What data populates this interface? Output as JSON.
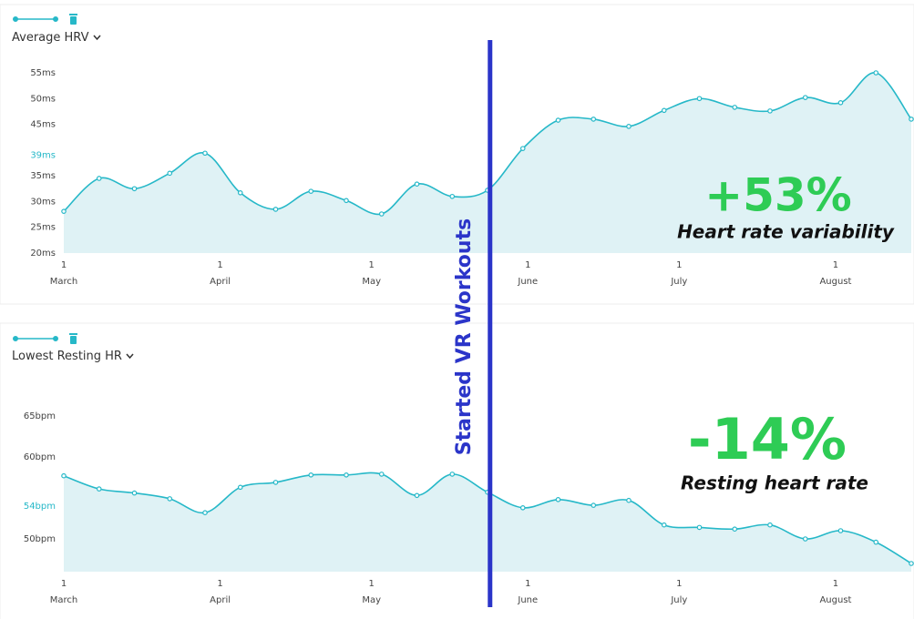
{
  "chart_data": [
    {
      "type": "area",
      "label": "Average HRV",
      "x": [
        0,
        7,
        14,
        21,
        28,
        35,
        42,
        49,
        56,
        63,
        70,
        77,
        84,
        91,
        98,
        105,
        112,
        119,
        126,
        133,
        140,
        147,
        154,
        161,
        168
      ],
      "values": [
        28.1,
        34.5,
        32.5,
        35.5,
        39.4,
        31.7,
        28.5,
        32,
        30.2,
        27.6,
        33.4,
        31,
        32.2,
        40.3,
        45.8,
        46,
        44.6,
        47.7,
        50,
        48.3,
        47.6,
        50.2,
        49.2,
        55,
        46
      ],
      "color": "#26b8c8",
      "fill_color": "#dff2f5",
      "xlim": [
        0,
        168
      ],
      "xticks": [
        {
          "value": 0,
          "label": "1\nMarch"
        },
        {
          "value": 31,
          "label": "1\nApril"
        },
        {
          "value": 61,
          "label": "1\nMay"
        },
        {
          "value": 92,
          "label": "1\nJune"
        },
        {
          "value": 122,
          "label": "1\nJuly"
        },
        {
          "value": 153,
          "label": "1\nAugust"
        }
      ],
      "ylim": [
        20,
        55
      ],
      "yticks": [
        {
          "value": 20,
          "label": "20ms"
        },
        {
          "value": 25,
          "label": "25ms"
        },
        {
          "value": 30,
          "label": "30ms"
        },
        {
          "value": 35,
          "label": "35ms"
        },
        {
          "value": 45,
          "label": "45ms"
        },
        {
          "value": 50,
          "label": "50ms"
        },
        {
          "value": 55,
          "label": "55ms"
        }
      ],
      "average_label": {
        "value": 39,
        "label": "39ms"
      },
      "change": "+53%",
      "change_caption": "Heart rate variability"
    },
    {
      "type": "area",
      "label": "Lowest Resting HR",
      "x": [
        0,
        7,
        14,
        21,
        28,
        35,
        42,
        49,
        56,
        63,
        70,
        77,
        84,
        91,
        98,
        105,
        112,
        119,
        126,
        133,
        140,
        147,
        154,
        161,
        168
      ],
      "values": [
        57.7,
        56.1,
        55.6,
        54.9,
        53.2,
        56.3,
        56.9,
        57.8,
        57.8,
        57.9,
        55.3,
        57.9,
        55.7,
        53.8,
        54.8,
        54.1,
        54.7,
        51.7,
        51.4,
        51.2,
        51.7,
        50,
        51,
        49.6,
        47
      ],
      "color": "#26b8c8",
      "fill_color": "#dff2f5",
      "xlim": [
        0,
        168
      ],
      "xticks": [
        {
          "value": 0,
          "label": "1\nMarch"
        },
        {
          "value": 31,
          "label": "1\nApril"
        },
        {
          "value": 61,
          "label": "1\nMay"
        },
        {
          "value": 92,
          "label": "1\nJune"
        },
        {
          "value": 122,
          "label": "1\nJuly"
        },
        {
          "value": 153,
          "label": "1\nAugust"
        }
      ],
      "ylim": [
        46,
        65
      ],
      "yticks": [
        {
          "value": 50,
          "label": "50bpm"
        },
        {
          "value": 60,
          "label": "60bpm"
        },
        {
          "value": 65,
          "label": "65bpm"
        }
      ],
      "average_label": {
        "value": 54,
        "label": "54bpm"
      },
      "change": "-14%",
      "change_caption": "Resting heart rate"
    }
  ],
  "annotation": {
    "text": "Started VR Workouts",
    "x": 84.5
  }
}
